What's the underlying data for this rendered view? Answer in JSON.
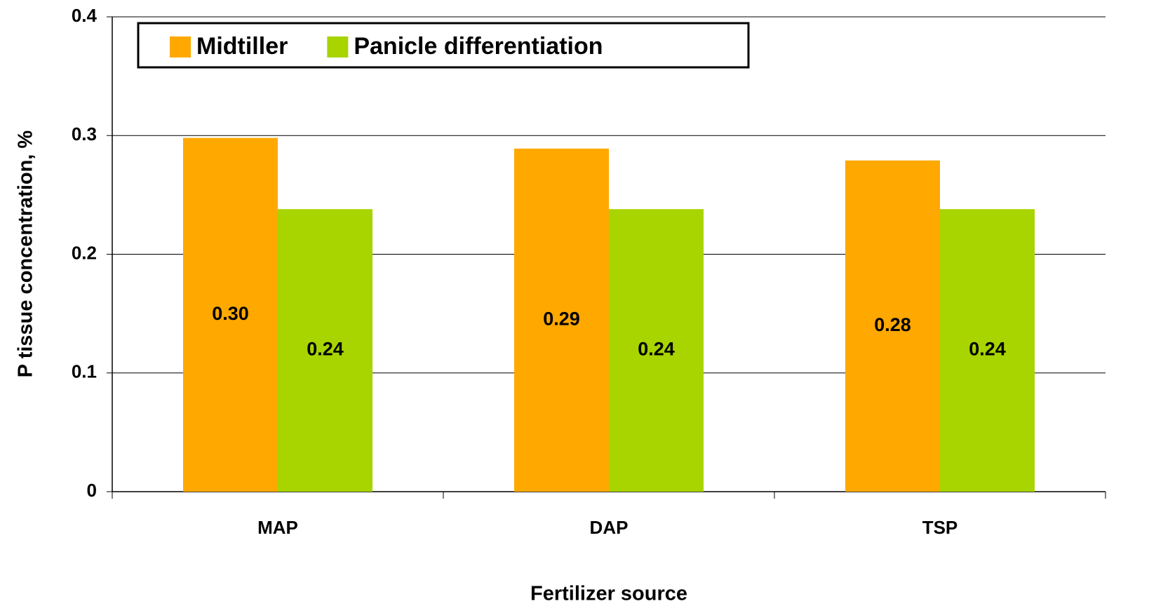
{
  "chart_data": {
    "type": "bar",
    "x_label": "Fertilizer source",
    "y_label": "P tissue concentration, %",
    "categories": [
      "MAP",
      "DAP",
      "TSP"
    ],
    "series": [
      {
        "name": "Midtiller",
        "color": "#ffa800",
        "values": [
          0.298,
          0.289,
          0.279
        ],
        "value_labels": [
          "0.30",
          "0.29",
          "0.28"
        ]
      },
      {
        "name": "Panicle differentiation",
        "color": "#a8d400",
        "values": [
          0.238,
          0.238,
          0.238
        ],
        "value_labels": [
          "0.24",
          "0.24",
          "0.24"
        ]
      }
    ],
    "ylim": [
      0,
      0.4
    ],
    "yticks": [
      0,
      0.1,
      0.2,
      0.3,
      0.4
    ],
    "grid": true,
    "legend": "top-left"
  }
}
